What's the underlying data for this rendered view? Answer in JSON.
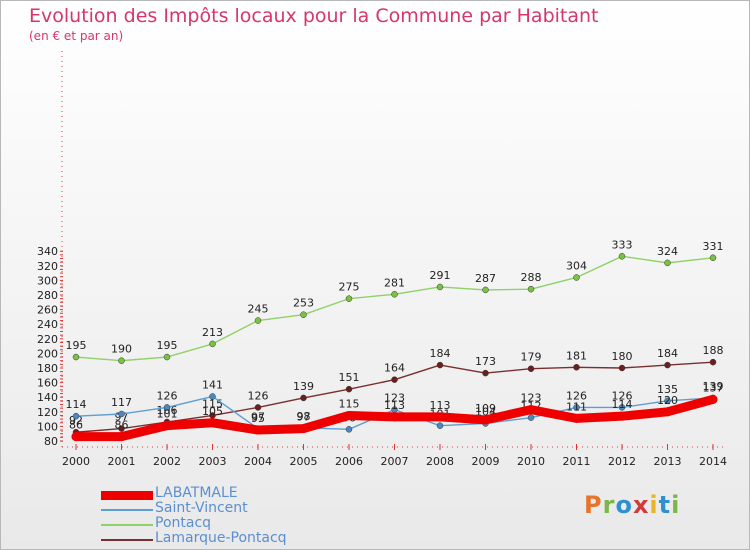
{
  "header": {
    "title": "Evolution des Impôts locaux pour la Commune par Habitant",
    "subtitle": "(en € et par an)"
  },
  "logo": {
    "text": "Proxiti",
    "colors": [
      "#e8732a",
      "#7ab648",
      "#2f8fd0",
      "#d23b3b",
      "#e8b52a",
      "#2f8fd0",
      "#7ab648"
    ]
  },
  "chart_data": {
    "type": "line",
    "title": "Evolution des Impôts locaux pour la Commune par Habitant",
    "subtitle": "(en € et par an)",
    "xlabel": "",
    "ylabel": "",
    "x": [
      2000,
      2001,
      2002,
      2003,
      2004,
      2005,
      2006,
      2007,
      2008,
      2009,
      2010,
      2011,
      2012,
      2013,
      2014
    ],
    "ylim": [
      80,
      345
    ],
    "yticks": [
      80,
      100,
      120,
      140,
      160,
      180,
      200,
      220,
      240,
      260,
      280,
      300,
      320,
      340
    ],
    "grid": false,
    "legend_position": "bottom-left",
    "series": [
      {
        "name": "Pontacq",
        "color": "#8fd16a",
        "marker": "#7bc144",
        "values": [
          195,
          190,
          195,
          213,
          245,
          253,
          275,
          281,
          291,
          287,
          288,
          304,
          333,
          324,
          331
        ]
      },
      {
        "name": "Lamarque-Pontacq",
        "color": "#7a2e2e",
        "marker": "#6b1f1f",
        "values": [
          92,
          97,
          106,
          115,
          126,
          139,
          151,
          164,
          184,
          173,
          179,
          181,
          180,
          184,
          188
        ]
      },
      {
        "name": "Saint-Vincent",
        "color": "#5e9ed0",
        "marker": "#4a88c4",
        "values": [
          114,
          117,
          126,
          141,
          97,
          98,
          96,
          123,
          101,
          104,
          112,
          126,
          126,
          135,
          139
        ]
      },
      {
        "name": "LABATMALE",
        "color": "#ee0000",
        "marker": "#ee0000",
        "values": [
          86,
          86,
          101,
          105,
          95,
          97,
          115,
          113,
          113,
          109,
          123,
          111,
          114,
          120,
          137
        ]
      }
    ]
  },
  "legend": [
    {
      "name": "LABATMALE",
      "color": "#ee0000",
      "text_color": "#5b8fd0"
    },
    {
      "name": "Saint-Vincent",
      "color": "#5e9ed0",
      "text_color": "#5b8fd0"
    },
    {
      "name": "Pontacq",
      "color": "#8fd16a",
      "text_color": "#5b8fd0"
    },
    {
      "name": "Lamarque-Pontacq",
      "color": "#7a2e2e",
      "text_color": "#5b8fd0"
    }
  ]
}
